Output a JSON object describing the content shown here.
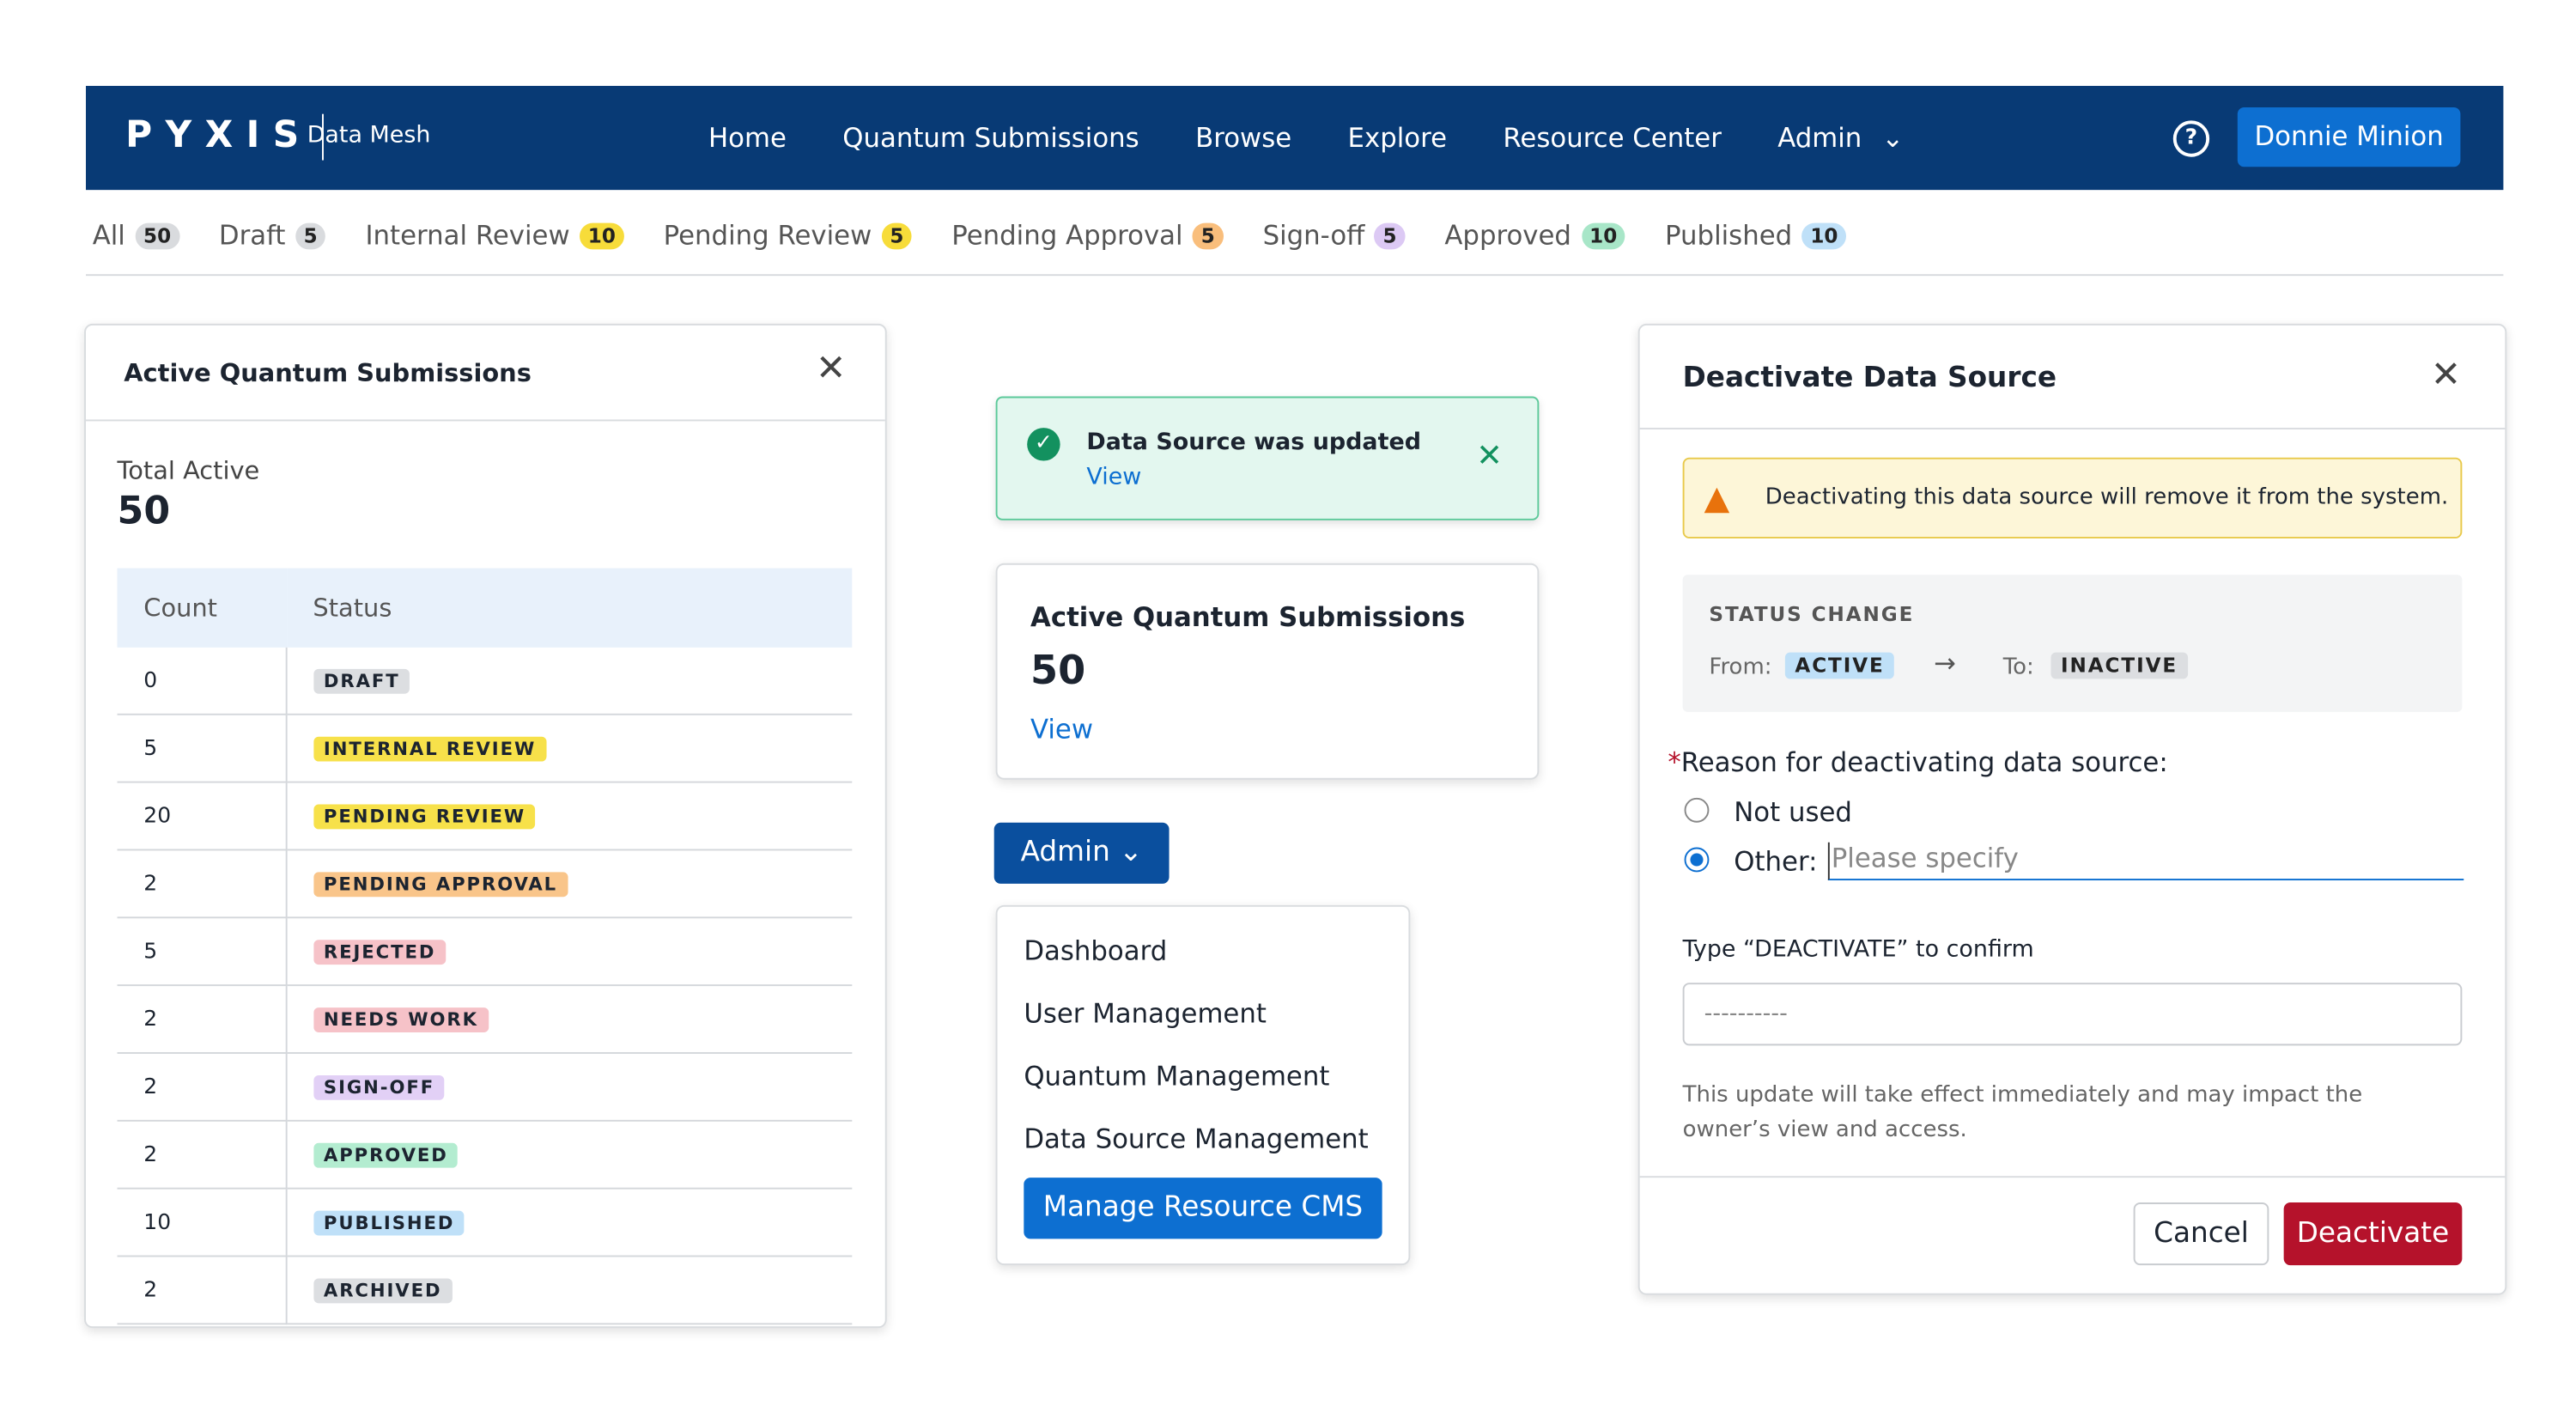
{
  "nav": {
    "logo": "PYXIS",
    "product": "Data Mesh",
    "links": [
      "Home",
      "Quantum Submissions",
      "Browse",
      "Explore",
      "Resource Center",
      "Admin"
    ],
    "help": "?",
    "user": "Donnie Minion"
  },
  "tabs": [
    {
      "label": "All",
      "count": 50
    },
    {
      "label": "Draft",
      "count": 5
    },
    {
      "label": "Internal Review",
      "count": 10
    },
    {
      "label": "Pending Review",
      "count": 5
    },
    {
      "label": "Pending Approval",
      "count": 5
    },
    {
      "label": "Sign-off",
      "count": 5
    },
    {
      "label": "Approved",
      "count": 10
    },
    {
      "label": "Published",
      "count": 10
    }
  ],
  "left_panel": {
    "title": "Active Quantum Submissions",
    "total_label": "Total Active",
    "total": 50,
    "columns": [
      "Count",
      "Status"
    ],
    "rows": [
      [
        0,
        "DRAFT"
      ],
      [
        5,
        "INTERNAL REVIEW"
      ],
      [
        20,
        "PENDING REVIEW"
      ],
      [
        2,
        "PENDING APPROVAL"
      ],
      [
        5,
        "REJECTED"
      ],
      [
        2,
        "NEEDS WORK"
      ],
      [
        2,
        "SIGN-OFF"
      ],
      [
        2,
        "APPROVED"
      ],
      [
        10,
        "PUBLISHED"
      ],
      [
        2,
        "ARCHIVED"
      ]
    ]
  },
  "toast": {
    "message": "Data Source was updated",
    "link": "View"
  },
  "card": {
    "title": "Active Quantum Submissions",
    "value": 50,
    "link": "View"
  },
  "dropdown": {
    "button": "Admin",
    "items": [
      "Dashboard",
      "User Management",
      "Quantum Management",
      "Data Source Management"
    ],
    "primary": "Manage Resource CMS"
  },
  "dialog": {
    "title": "Deactivate Data Source",
    "warning": "Deactivating this data source will remove it from the system.",
    "status_heading": "STATUS CHANGE",
    "from_label": "From:",
    "from": "ACTIVE",
    "to_label": "To:",
    "to": "INACTIVE",
    "required_mark": "*",
    "question": "Reason for deactivating data source:",
    "options": [
      "Not used",
      "Other:"
    ],
    "placeholder": "Please specify",
    "confirm_label": "Type “DEACTIVATE” to confirm",
    "confirm_placeholder": "----------",
    "note": "This update will take effect immediately and may impact the owner’s view and access.",
    "cancel": "Cancel",
    "submit": "Deactivate"
  }
}
